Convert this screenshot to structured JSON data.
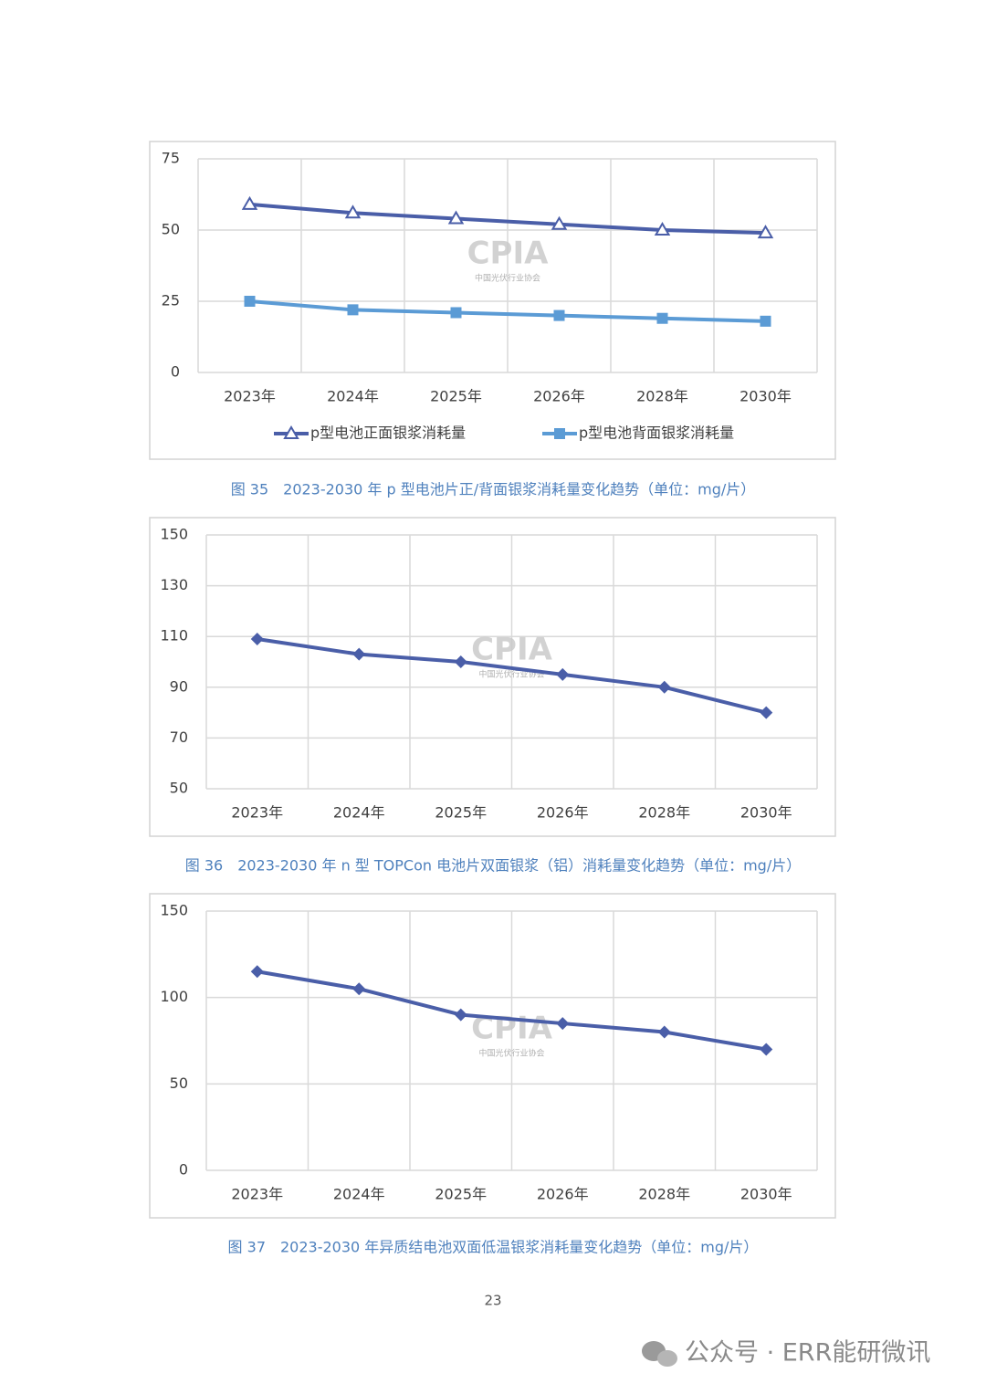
{
  "chart_data": [
    {
      "type": "line",
      "caption": "图 35　2023-2030 年 p 型电池片正/背面银浆消耗量变化趋势（单位：mg/片）",
      "categories": [
        "2023年",
        "2024年",
        "2025年",
        "2026年",
        "2028年",
        "2030年"
      ],
      "series": [
        {
          "name": "p型电池正面银浆消耗量",
          "color": "#4a5ea8",
          "marker": "triangle-open",
          "values": [
            59,
            56,
            54,
            52,
            50,
            49
          ]
        },
        {
          "name": "p型电池背面银浆消耗量",
          "color": "#5b9bd5",
          "marker": "square",
          "values": [
            25,
            22,
            21,
            20,
            19,
            18
          ]
        }
      ],
      "ylim": [
        0,
        75
      ],
      "yticks": [
        0,
        25,
        50,
        75
      ],
      "grid": true,
      "legend": "bottom"
    },
    {
      "type": "line",
      "caption": "图 36　2023-2030 年 n 型 TOPCon 电池片双面银浆（铝）消耗量变化趋势（单位：mg/片）",
      "categories": [
        "2023年",
        "2024年",
        "2025年",
        "2026年",
        "2028年",
        "2030年"
      ],
      "values": [
        109,
        103,
        100,
        95,
        90,
        80
      ],
      "color": "#4a5ea8",
      "marker": "diamond",
      "ylim": [
        50,
        150
      ],
      "yticks": [
        50,
        70,
        90,
        110,
        130,
        150
      ],
      "grid": true
    },
    {
      "type": "line",
      "caption": "图 37　2023-2030 年异质结电池双面低温银浆消耗量变化趋势（单位：mg/片）",
      "categories": [
        "2023年",
        "2024年",
        "2025年",
        "2026年",
        "2028年",
        "2030年"
      ],
      "values": [
        115,
        105,
        90,
        85,
        80,
        70
      ],
      "color": "#4a5ea8",
      "marker": "diamond",
      "ylim": [
        0,
        150
      ],
      "yticks": [
        0,
        50,
        100,
        150
      ],
      "grid": true
    }
  ],
  "logo": {
    "text": "CPIA",
    "subtext": "中国光伏行业协会"
  },
  "page_number": "23",
  "footer_watermark": "公众号 · ERR能研微讯"
}
